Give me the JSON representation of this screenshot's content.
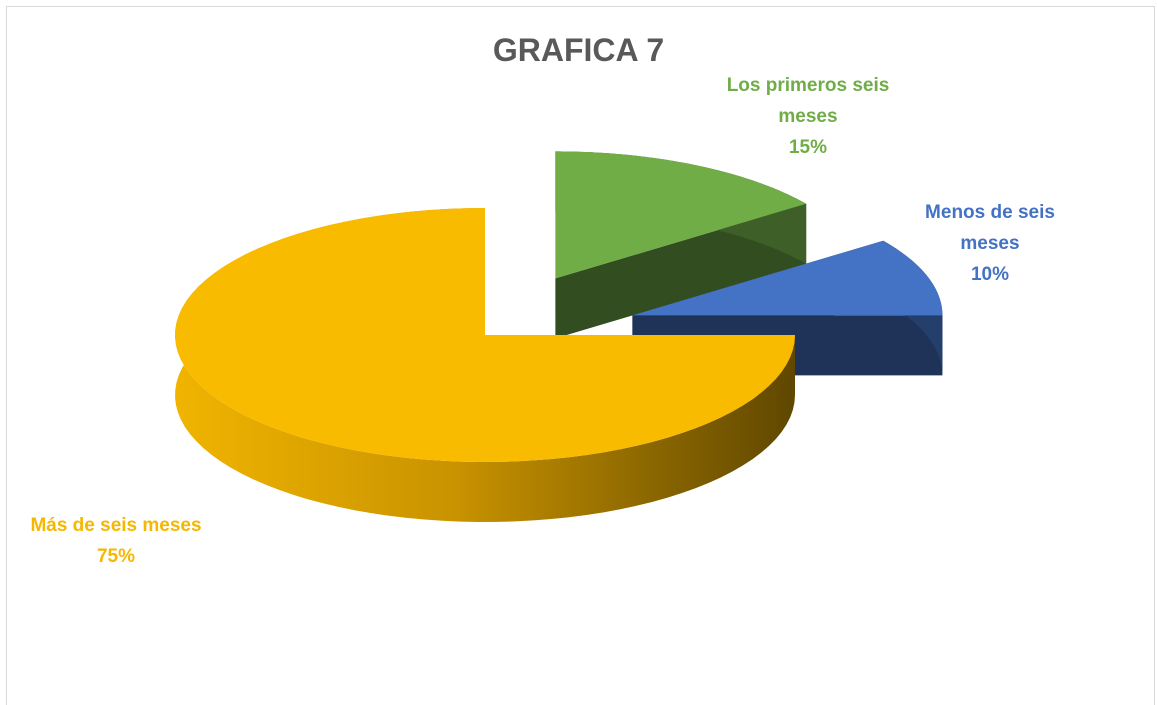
{
  "chart_data": {
    "type": "pie",
    "title": "GRAFICA 7",
    "categories": [
      "Los primeros seis meses",
      "Menos de seis meses",
      "Más de seis meses"
    ],
    "values": [
      15,
      10,
      75
    ],
    "value_labels": [
      "15%",
      "10%",
      "75%"
    ],
    "colors": [
      "#70ad47",
      "#4472c4",
      "#f9bb00"
    ]
  }
}
